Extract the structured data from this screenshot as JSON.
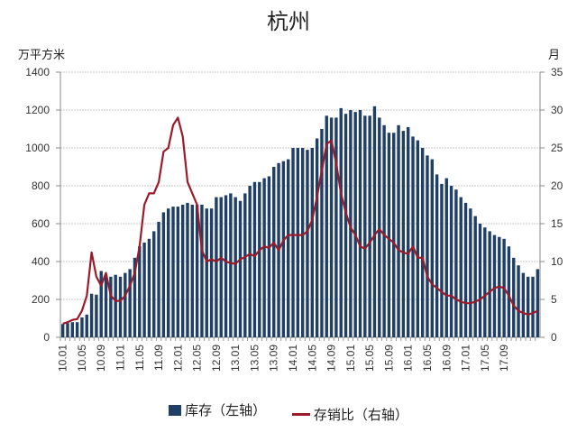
{
  "chart_data": {
    "type": "bar+line",
    "title": "杭州",
    "ylabel_left": "万平方米",
    "ylabel_right": "月",
    "ylim_left": [
      0,
      1400
    ],
    "ylim_right": [
      0,
      35
    ],
    "yticks_left": [
      0,
      200,
      400,
      600,
      800,
      1000,
      1200,
      1400
    ],
    "yticks_right": [
      0,
      5,
      10,
      15,
      20,
      25,
      30,
      35
    ],
    "grid": true,
    "legend_position": "bottom",
    "xtick_labels": [
      "10.01",
      "10.05",
      "10.09",
      "11.01",
      "11.05",
      "11.09",
      "12.01",
      "12.05",
      "12.09",
      "13.01",
      "13.05",
      "13.09",
      "14.01",
      "14.05",
      "14.09",
      "15.01",
      "15.05",
      "15.09",
      "16.01",
      "16.05",
      "16.09",
      "17.01",
      "17.05",
      "17.09"
    ],
    "x_start": "10.01",
    "x_end": "17.12",
    "colors": {
      "bar": "#1f3f66",
      "line": "#9b1b2a",
      "grid": "#c8c8c8"
    },
    "series": [
      {
        "name": "库存（左轴）",
        "type": "bar",
        "axis": "left",
        "values": [
          70,
          75,
          80,
          80,
          105,
          120,
          230,
          225,
          350,
          330,
          320,
          330,
          320,
          340,
          360,
          420,
          480,
          500,
          520,
          560,
          610,
          660,
          680,
          690,
          690,
          700,
          710,
          700,
          700,
          700,
          680,
          680,
          740,
          740,
          750,
          760,
          740,
          720,
          760,
          800,
          820,
          820,
          840,
          850,
          900,
          920,
          930,
          940,
          1000,
          1000,
          1000,
          990,
          1000,
          1050,
          1100,
          1170,
          1160,
          1160,
          1210,
          1180,
          1200,
          1190,
          1200,
          1170,
          1170,
          1220,
          1160,
          1120,
          1080,
          1080,
          1120,
          1090,
          1110,
          1060,
          1040,
          1000,
          960,
          940,
          860,
          810,
          840,
          800,
          780,
          740,
          710,
          680,
          640,
          600,
          580,
          560,
          540,
          530,
          520,
          480,
          420,
          380,
          340,
          320,
          320,
          360
        ]
      },
      {
        "name": "存销比（右轴）",
        "type": "line",
        "axis": "right",
        "values": [
          1.8,
          2.0,
          2.3,
          2.4,
          3.5,
          5.5,
          11.2,
          8.0,
          6.8,
          8.5,
          5.5,
          4.8,
          4.8,
          5.5,
          6.8,
          8.5,
          12.0,
          17.5,
          19.0,
          19.0,
          20.5,
          24.5,
          25.0,
          28.0,
          29.0,
          26.5,
          20.5,
          19.0,
          17.5,
          11.5,
          10.0,
          10.3,
          10.0,
          10.5,
          10.0,
          9.8,
          9.7,
          10.3,
          10.6,
          11.0,
          10.7,
          11.5,
          12.0,
          11.8,
          12.5,
          11.5,
          12.8,
          13.5,
          13.5,
          13.5,
          13.5,
          14.0,
          15.5,
          18.5,
          22.0,
          25.5,
          26.0,
          23.0,
          19.0,
          16.5,
          14.5,
          13.5,
          12.0,
          11.7,
          12.5,
          13.5,
          14.3,
          13.5,
          13.0,
          12.5,
          11.5,
          11.2,
          11.0,
          12.0,
          10.5,
          10.5,
          8.0,
          7.0,
          6.5,
          6.0,
          5.5,
          5.5,
          5.0,
          4.7,
          4.5,
          4.5,
          4.7,
          5.0,
          5.5,
          6.0,
          6.5,
          6.7,
          6.5,
          5.5,
          4.2,
          3.5,
          3.2,
          3.0,
          3.2,
          3.5
        ]
      }
    ]
  },
  "header": {
    "title": "杭州",
    "left_axis_unit": "万平方米",
    "right_axis_unit": "月"
  },
  "legend": {
    "bar_label": "库存（左轴）",
    "line_label": "存销比（右轴）"
  }
}
